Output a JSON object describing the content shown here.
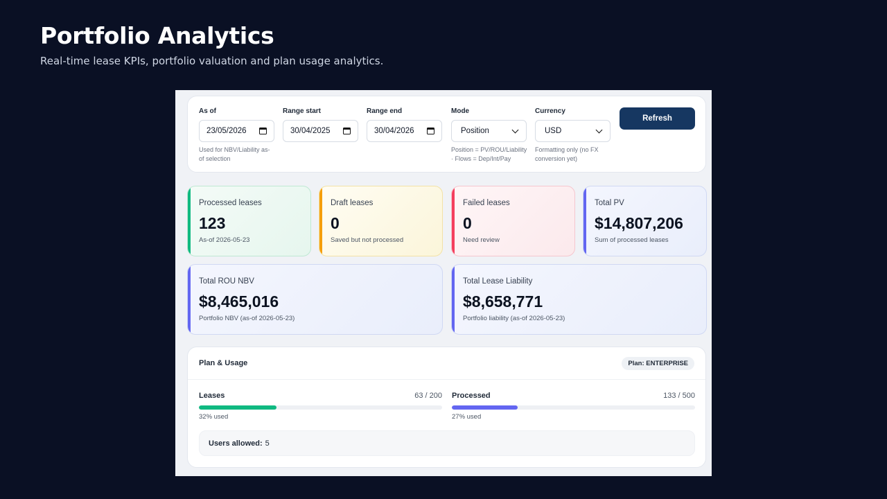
{
  "slide": {
    "title": "Portfolio Analytics",
    "subtitle": "Real-time lease KPIs, portfolio valuation and plan usage analytics."
  },
  "filters": {
    "as_of": {
      "label": "As of",
      "value": "23/05/2026",
      "help": "Used for NBV/Liability as-of selection",
      "icon": "calendar-icon"
    },
    "range_start": {
      "label": "Range start",
      "value": "30/04/2025",
      "icon": "calendar-icon"
    },
    "range_end": {
      "label": "Range end",
      "value": "30/04/2026",
      "icon": "calendar-icon"
    },
    "mode": {
      "label": "Mode",
      "value": "Position",
      "help": "Position = PV/ROU/Liability · Flows = Dep/Int/Pay",
      "icon": "chevron-down-icon"
    },
    "currency": {
      "label": "Currency",
      "value": "USD",
      "help": "Formatting only (no FX conversion yet)",
      "icon": "chevron-down-icon"
    },
    "refresh_label": "Refresh"
  },
  "kpis": {
    "processed": {
      "label": "Processed leases",
      "value": "123",
      "sub": "As-of 2026-05-23",
      "accent": "#10b981"
    },
    "draft": {
      "label": "Draft leases",
      "value": "0",
      "sub": "Saved but not processed",
      "accent": "#f59e0b"
    },
    "failed": {
      "label": "Failed leases",
      "value": "0",
      "sub": "Need review",
      "accent": "#f43f5e"
    },
    "total_pv": {
      "label": "Total PV",
      "value": "$14,807,206",
      "sub": "Sum of processed leases",
      "accent": "#6366f1"
    },
    "rou_nbv": {
      "label": "Total ROU NBV",
      "value": "$8,465,016",
      "sub": "Portfolio NBV (as-of 2026-05-23)",
      "accent": "#6366f1"
    },
    "liability": {
      "label": "Total Lease Liability",
      "value": "$8,658,771",
      "sub": "Portfolio liability (as-of 2026-05-23)",
      "accent": "#6366f1"
    }
  },
  "plan": {
    "title": "Plan & Usage",
    "badge": "Plan: ENTERPRISE",
    "leases": {
      "label": "Leases",
      "count": "63 / 200",
      "pct_text": "32% used",
      "fraction": 0.32,
      "color": "#10b981"
    },
    "processed": {
      "label": "Processed",
      "count": "133 / 500",
      "pct_text": "27% used",
      "fraction": 0.27,
      "color": "#6366f1"
    },
    "users_label": "Users allowed:",
    "users_value": "5"
  }
}
